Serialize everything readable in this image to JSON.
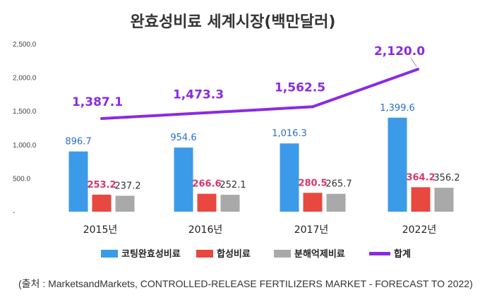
{
  "chart_data": {
    "type": "bar",
    "title": "완효성비료 세계시장(백만달러)",
    "categories": [
      "2015년",
      "2016년",
      "2017년",
      "2022년"
    ],
    "ylim": [
      0,
      2500
    ],
    "yticks": [
      "2,500.0",
      "2,000.0",
      "1,500.0",
      "1,000.0",
      "500.0",
      "-"
    ],
    "ytick_values": [
      2500,
      2000,
      1500,
      1000,
      500,
      0
    ],
    "grid": false,
    "legend_position": "bottom",
    "series": [
      {
        "name": "코팅완효성비료",
        "type": "bar",
        "color": "#3c9be8",
        "label_color": "#2e6fc4",
        "values": [
          896.7,
          954.6,
          1016.3,
          1399.6
        ],
        "labels": [
          "896.7",
          "954.6",
          "1,016.3",
          "1,399.6"
        ]
      },
      {
        "name": "합성비료",
        "type": "bar",
        "color": "#e8483f",
        "label_color": "#d8376a",
        "values": [
          253.2,
          266.6,
          280.5,
          364.2
        ],
        "labels": [
          "253.2",
          "266.6",
          "280.5",
          "364.2"
        ]
      },
      {
        "name": "분해억제비료",
        "type": "bar",
        "color": "#a9a9a9",
        "label_color": "#333333",
        "values": [
          237.2,
          252.1,
          265.7,
          356.2
        ],
        "labels": [
          "237.2",
          "252.1",
          "265.7",
          "356.2"
        ]
      },
      {
        "name": "합계",
        "type": "line",
        "color": "#8a2be2",
        "label_color": "#8a2be2",
        "values": [
          1387.1,
          1473.3,
          1562.5,
          2120.0
        ],
        "labels": [
          "1,387.1",
          "1,473.3",
          "1,562.5",
          "2,120.0"
        ]
      }
    ]
  },
  "source": "(출처 :  MarketsandMarkets, CONTROLLED-RELEASE FERTILIZERS MARKET - FORECAST TO 2022)"
}
